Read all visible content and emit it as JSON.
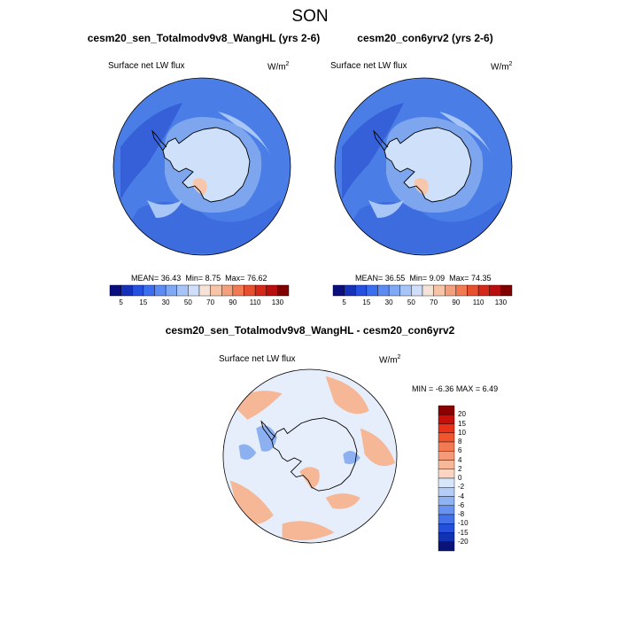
{
  "title": "SON",
  "panels": [
    {
      "title": "cesm20_sen_Totalmodv9v8_WangHL (yrs 2-6)",
      "variable": "Surface net LW flux",
      "units_base": "W/m",
      "units_sup": "2",
      "stats": {
        "mean_label": "MEAN=",
        "mean": "36.43",
        "min_label": "Min=",
        "min": "8.75",
        "max_label": "Max=",
        "max": "76.62"
      }
    },
    {
      "title": "cesm20_con6yrv2 (yrs 2-6)",
      "variable": "Surface net LW flux",
      "units_base": "W/m",
      "units_sup": "2",
      "stats": {
        "mean_label": "MEAN=",
        "mean": "36.55",
        "min_label": "Min=",
        "min": "9.09",
        "max_label": "Max=",
        "max": "74.35"
      }
    },
    {
      "title": "cesm20_sen_Totalmodv9v8_WangHL - cesm20_con6yrv2",
      "variable": "Surface net LW flux",
      "units_base": "W/m",
      "units_sup": "2",
      "stats": {
        "min_label": "MIN =",
        "min": "-6.36",
        "max_label": "MAX =",
        "max": "6.49"
      }
    }
  ],
  "colorbar_main": {
    "labels": [
      "5",
      "15",
      "30",
      "50",
      "70",
      "90",
      "110",
      "130"
    ],
    "colors": [
      "#0a0f7d",
      "#1632b8",
      "#2550e0",
      "#3c6ef0",
      "#5c8cf2",
      "#7fa8f5",
      "#a6c4f8",
      "#cfdefa",
      "#f5e3d8",
      "#f7c4a8",
      "#f5a07c",
      "#f27a52",
      "#e6502e",
      "#d42818",
      "#b80e0e",
      "#800000"
    ]
  },
  "colorbar_diff": {
    "labels": [
      "20",
      "15",
      "10",
      "8",
      "6",
      "4",
      "2",
      "0",
      "-2",
      "-4",
      "-6",
      "-8",
      "-10",
      "-15",
      "-20"
    ],
    "colors": [
      "#8b0000",
      "#c80f0a",
      "#e8321a",
      "#f0552e",
      "#f27a52",
      "#f59a78",
      "#f7b89a",
      "#fad6c2",
      "#d8e6fa",
      "#b4cdf7",
      "#8fb2f3",
      "#6892ef",
      "#4472e8",
      "#2450dc",
      "#1232b4",
      "#0a1478"
    ]
  },
  "map_colors": {
    "ocean_main": "#4a7ee6",
    "ocean_dark": "#3560d8",
    "ice_light": "#cfe0fa",
    "ice_mid": "#a8c6f6",
    "warm": "#f6c7ad",
    "diff_base": "#e6eefc",
    "diff_pos": "#f5b796",
    "diff_neg": "#8cb0f0",
    "coast": "#000000"
  }
}
